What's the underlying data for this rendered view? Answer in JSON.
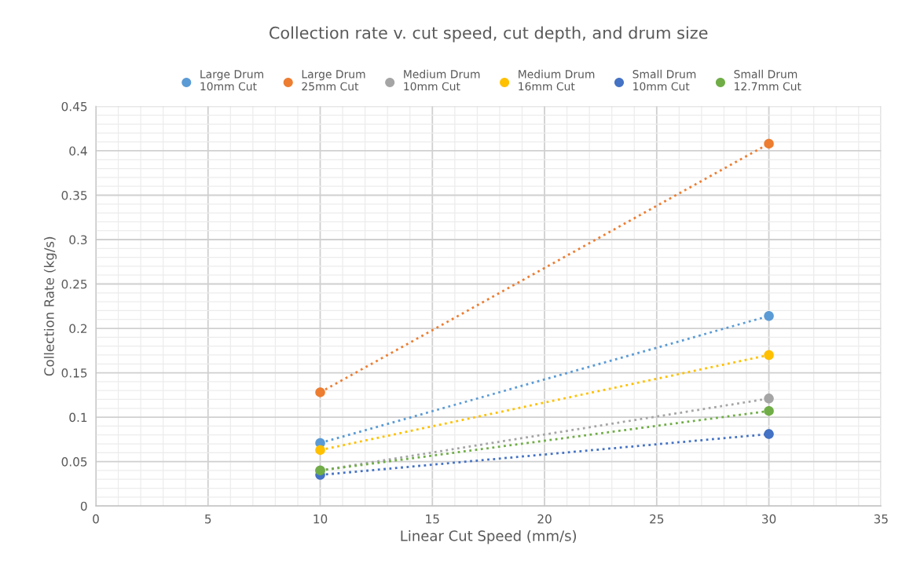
{
  "chart_data": {
    "type": "line",
    "title": "Collection rate v. cut speed, cut depth, and drum size",
    "xlabel": "Linear Cut Speed (mm/s)",
    "ylabel": "Collection Rate (kg/s)",
    "x": [
      10,
      30
    ],
    "series": [
      {
        "name": "Large Drum\n10mm Cut",
        "color": "#5b9bd5",
        "values": [
          0.071,
          0.214
        ]
      },
      {
        "name": "Large Drum\n25mm Cut",
        "color": "#ed7d31",
        "values": [
          0.128,
          0.408
        ]
      },
      {
        "name": "Medium Drum\n10mm Cut",
        "color": "#a5a5a5",
        "values": [
          0.04,
          0.121
        ]
      },
      {
        "name": "Medium Drum\n16mm Cut",
        "color": "#ffc000",
        "values": [
          0.063,
          0.17
        ]
      },
      {
        "name": "Small Drum\n10mm Cut",
        "color": "#4472c4",
        "values": [
          0.035,
          0.081
        ]
      },
      {
        "name": "Small Drum\n12.7mm Cut",
        "color": "#70ad47",
        "values": [
          0.04,
          0.107
        ]
      }
    ],
    "xlim": [
      0,
      35
    ],
    "xticks": [
      0,
      5,
      10,
      15,
      20,
      25,
      30,
      35
    ],
    "ylim": [
      0,
      0.45
    ],
    "yticks": [
      0,
      0.05,
      0.1,
      0.15,
      0.2,
      0.25,
      0.3,
      0.35,
      0.4,
      0.45
    ],
    "grid": true,
    "legend": "top",
    "marker": "circle",
    "line_style": "dotted"
  }
}
